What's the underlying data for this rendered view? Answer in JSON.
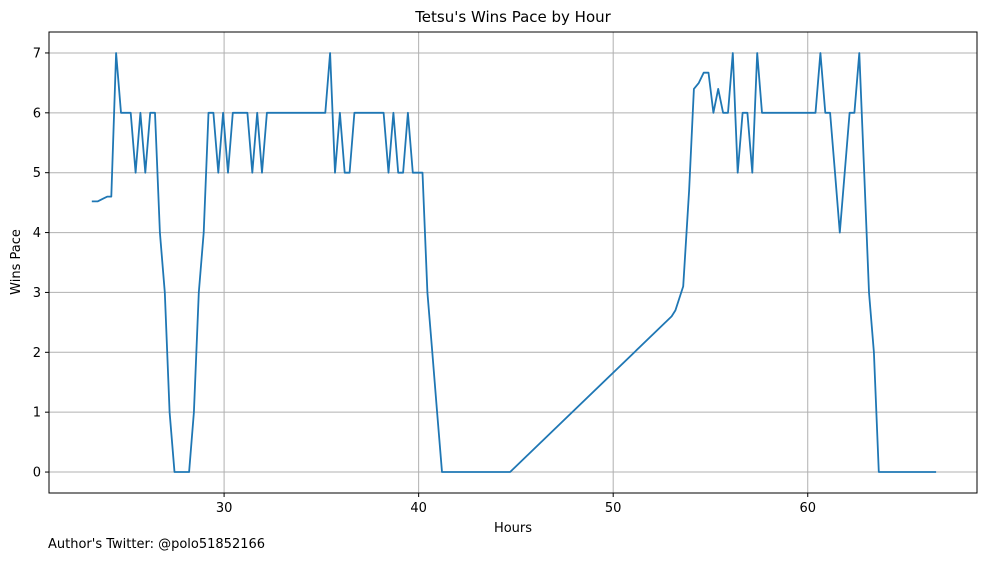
{
  "chart_data": {
    "type": "line",
    "title": "Tetsu's Wins Pace by Hour",
    "xlabel": "Hours",
    "ylabel": "Wins Pace",
    "xlim": [
      21.0,
      68.7
    ],
    "ylim": [
      -0.35,
      7.35
    ],
    "xticks": [
      30,
      40,
      50,
      60
    ],
    "yticks": [
      0,
      1,
      2,
      3,
      4,
      5,
      6,
      7
    ],
    "grid": true,
    "legend": "none",
    "color": "#1f77b4",
    "series": [
      {
        "x": [
          23.2,
          23.5,
          23.8,
          24.0,
          24.2,
          24.45,
          24.7,
          24.95,
          25.2,
          25.45,
          25.7,
          25.95,
          26.2,
          26.45,
          26.7,
          26.95,
          27.2,
          27.45,
          27.7,
          28.2,
          28.45,
          28.7,
          28.95,
          29.2,
          29.45,
          29.7,
          29.95,
          30.2,
          30.45,
          30.7,
          30.95,
          31.2,
          31.45,
          31.7,
          31.95,
          32.2,
          32.45,
          32.7,
          32.95,
          35.2,
          35.45,
          35.7,
          35.95,
          36.2,
          36.45,
          36.7,
          36.95,
          37.2,
          38.2,
          38.45,
          38.7,
          38.95,
          39.2,
          39.45,
          39.7,
          39.95,
          40.2,
          40.45,
          40.7,
          40.95,
          41.2,
          41.45,
          44.7,
          53.0,
          53.2,
          53.4,
          53.6,
          53.9,
          54.15,
          54.4,
          54.65,
          54.9,
          55.15,
          55.4,
          55.65,
          55.9,
          56.15,
          56.4,
          56.65,
          56.9,
          57.15,
          57.4,
          57.65,
          57.9,
          58.15,
          60.4,
          60.65,
          60.9,
          61.15,
          61.4,
          61.65,
          61.9,
          62.15,
          62.4,
          62.65,
          62.9,
          63.15,
          63.4,
          63.65,
          63.9,
          66.6
        ],
        "y": [
          4.52,
          4.52,
          4.57,
          4.6,
          4.6,
          7,
          6,
          6,
          6,
          5,
          6,
          5,
          6,
          6,
          4,
          3,
          1,
          0,
          0,
          0,
          1,
          3,
          4,
          6,
          6,
          5,
          6,
          5,
          6,
          6,
          6,
          6,
          5,
          6,
          5,
          6,
          6,
          6,
          6,
          6,
          7,
          5,
          6,
          5,
          5,
          6,
          6,
          6,
          6,
          5,
          6,
          5,
          5,
          6,
          5,
          5,
          5,
          3,
          2,
          1,
          0,
          0,
          0,
          2.6,
          2.7,
          2.9,
          3.1,
          4.7,
          6.4,
          6.5,
          6.67,
          6.67,
          6,
          6.4,
          6,
          6,
          7,
          5,
          6,
          6,
          5,
          7,
          6,
          6,
          6,
          6,
          7,
          6,
          6,
          5,
          4,
          5,
          6,
          6,
          7,
          5,
          3,
          2,
          0,
          0,
          0
        ]
      }
    ]
  },
  "footnote": "Author's Twitter: @polo51852166"
}
